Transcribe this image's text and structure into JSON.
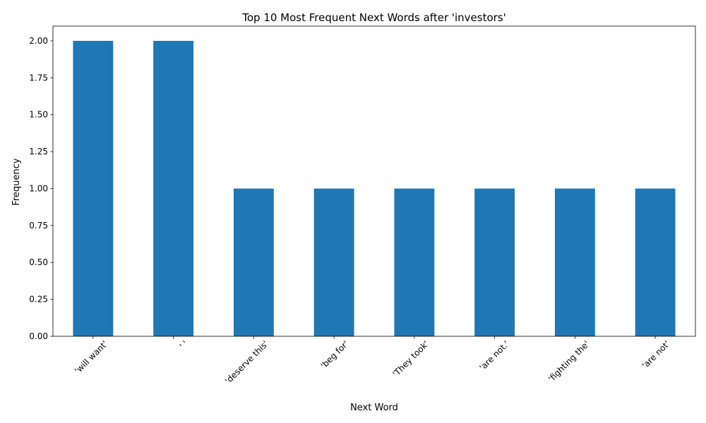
{
  "chart_data": {
    "type": "bar",
    "title": "Top 10 Most Frequent Next Words after 'investors'",
    "xlabel": "Next Word",
    "ylabel": "Frequency",
    "categories": [
      "'will want'",
      "' '",
      "'deserve this'",
      "'beg for'",
      "'They took'",
      "'are not.'",
      "'fighting the'",
      "'are not'"
    ],
    "values": [
      2,
      2,
      1,
      1,
      1,
      1,
      1,
      1
    ],
    "ylim": [
      0,
      2.1
    ],
    "yticks": [
      0,
      0.25,
      0.5,
      0.75,
      1.0,
      1.25,
      1.5,
      1.75,
      2.0
    ],
    "ytick_labels": [
      "0.00",
      "0.25",
      "0.50",
      "0.75",
      "1.00",
      "1.25",
      "1.50",
      "1.75",
      "2.00"
    ],
    "grid": false,
    "legend": "none",
    "bar_color": "#1f77b4",
    "xtick_rotation_deg": 45
  }
}
